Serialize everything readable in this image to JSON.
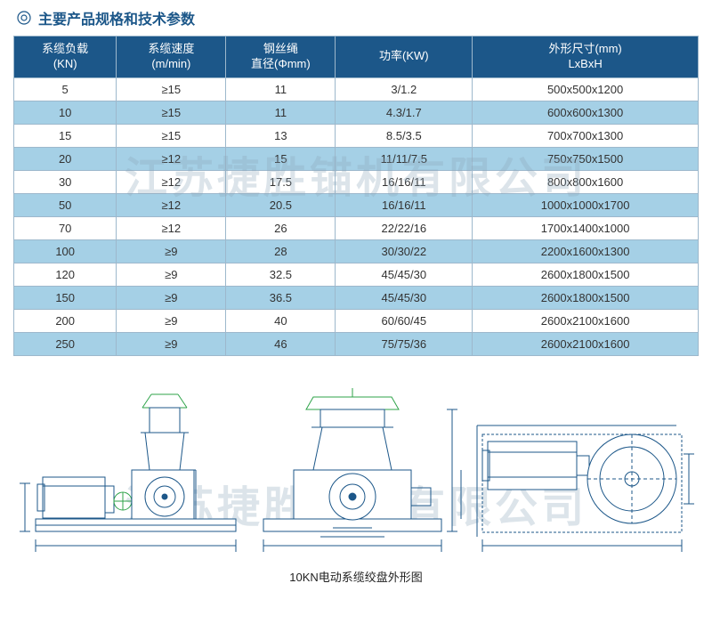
{
  "title": "主要产品规格和技术参数",
  "watermark_text": "江苏捷胜锚机有限公司",
  "colors": {
    "header_bg": "#1c5789",
    "header_text": "#ffffff",
    "border": "#9db8cc",
    "row_odd": "#ffffff",
    "row_even": "#a5d0e6",
    "title_color": "#1c5789",
    "diagram_stroke": "#1c5789",
    "diagram_accent": "#2fa34a"
  },
  "table": {
    "headers": [
      {
        "line1": "系缆负载",
        "line2": "(KN)"
      },
      {
        "line1": "系缆速度",
        "line2": "(m/min)"
      },
      {
        "line1": "钢丝绳",
        "line2": "直径(Φmm)"
      },
      {
        "line1": "功率(KW)",
        "line2": ""
      },
      {
        "line1": "外形尺寸(mm)",
        "line2": "LxBxH"
      }
    ],
    "col_widths": [
      "15%",
      "16%",
      "16%",
      "20%",
      "33%"
    ],
    "rows": [
      [
        "5",
        "≥15",
        "11",
        "3/1.2",
        "500x500x1200"
      ],
      [
        "10",
        "≥15",
        "11",
        "4.3/1.7",
        "600x600x1300"
      ],
      [
        "15",
        "≥15",
        "13",
        "8.5/3.5",
        "700x700x1300"
      ],
      [
        "20",
        "≥12",
        "15",
        "11/11/7.5",
        "750x750x1500"
      ],
      [
        "30",
        "≥12",
        "17.5",
        "16/16/11",
        "800x800x1600"
      ],
      [
        "50",
        "≥12",
        "20.5",
        "16/16/11",
        "1000x1000x1700"
      ],
      [
        "70",
        "≥12",
        "26",
        "22/22/16",
        "1700x1400x1000"
      ],
      [
        "100",
        "≥9",
        "28",
        "30/30/22",
        "2200x1600x1300"
      ],
      [
        "120",
        "≥9",
        "32.5",
        "45/45/30",
        "2600x1800x1500"
      ],
      [
        "150",
        "≥9",
        "36.5",
        "45/45/30",
        "2600x1800x1500"
      ],
      [
        "200",
        "≥9",
        "40",
        "60/60/45",
        "2600x2100x1600"
      ],
      [
        "250",
        "≥9",
        "46",
        "75/75/36",
        "2600x2100x1600"
      ]
    ]
  },
  "diagram": {
    "caption": "10KN电动系缆绞盘外形图"
  }
}
